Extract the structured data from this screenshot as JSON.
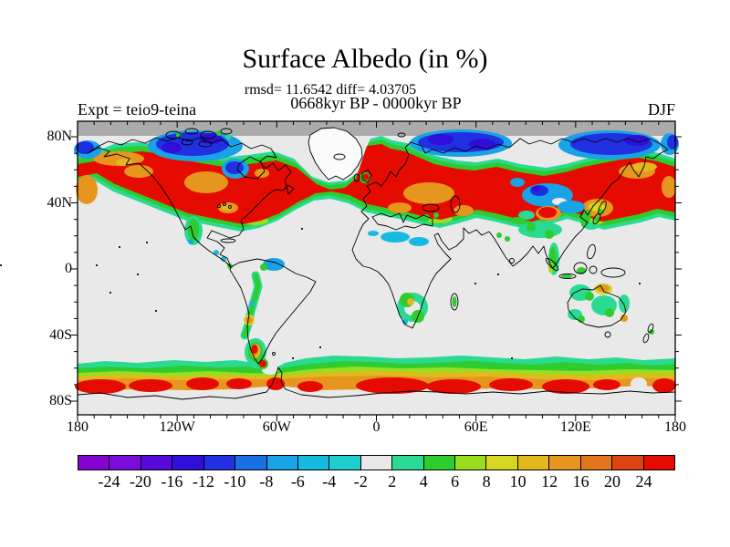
{
  "header": {
    "title": "Surface Albedo (in %)",
    "stats_line": "rmsd= 11.6542 diff= 4.03705",
    "period_line": "0668kyr BP - 0000kyr BP",
    "experiment_label": "Expt = teio9-teina",
    "season_label": "DJF"
  },
  "chart_data": {
    "type": "heatmap",
    "title": "Surface Albedo (in %)",
    "subtitle": "0668kyr BP - 0000kyr BP",
    "stats": {
      "rmsd": "11.6542",
      "diff": "4.03705"
    },
    "experiment": "teio9-teina",
    "season": "DJF",
    "map": "global equirectangular map of surface albedo difference (0668kyr BP minus 0000kyr BP), filled contours",
    "x_axis": {
      "tick_labels": [
        "180",
        "120W",
        "60W",
        "0",
        "60E",
        "120E",
        "180"
      ],
      "minor_tick_every_deg": 10
    },
    "y_axis": {
      "tick_labels": [
        "80N",
        "40N",
        "0",
        "40S",
        "80S"
      ],
      "minor_tick_every_deg": 10
    },
    "colorbar": {
      "boundary_labels": [
        "-24",
        "-20",
        "-16",
        "-12",
        "-10",
        "-8",
        "-6",
        "-4",
        "-2",
        "2",
        "4",
        "6",
        "8",
        "10",
        "12",
        "16",
        "20",
        "24"
      ],
      "segment_colors": [
        "#8403CE",
        "#7A0BD9",
        "#5708DB",
        "#2E0ED8",
        "#2130E0",
        "#1A70E2",
        "#19A2E5",
        "#16B9DF",
        "#1FCCCE",
        "#E8E8E8",
        "#2BDA92",
        "#2ECC2E",
        "#9ADC20",
        "#D5D723",
        "#E3B81E",
        "#E6961E",
        "#E2761A",
        "#DC4413",
        "#E60B00"
      ]
    },
    "background_value_color": "#E9E9E9",
    "undefined_band_color": "#ABABAB",
    "visible_features": [
      "Large positive (red) albedo anomaly band across North America, the North Atlantic and Eurasia near 45-65N with orange cores",
      "Negative (blue/indigo) anomalies over the Arctic: Canadian archipelago, north Siberia and Chukchi/Bering region",
      "Dark grey undefined band poleward of about 82N",
      "Weak negative (cyan) patches over the Sahara and central Asia",
      "Circumpolar positive band (teal-green-yellow-orange-red) around 55-70S along the Antarctic coast",
      "Scattered positive patches over the Andes, Patagonia, southern Africa, Australia and Southeast Asia"
    ]
  }
}
